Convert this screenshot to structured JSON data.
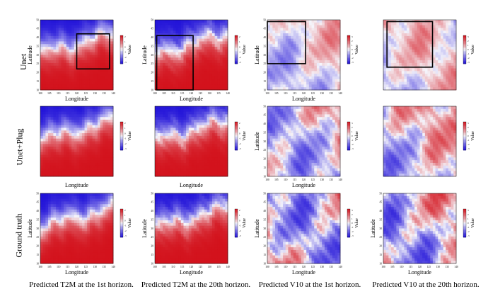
{
  "figure": {
    "rows": [
      "Unet",
      "Unet+Plug",
      "Ground truth"
    ],
    "captions": [
      "Predicted T2M at the 1st horizon.",
      "Predicted T2M at the 20th horizon.",
      "Predicted V10 at the 1st horizon.",
      "Predicted V10 at the 20th horizon."
    ]
  },
  "colors": {
    "low": "#1f10d8",
    "mid": "#f6f6fb",
    "high": "#d3121c",
    "box": "#000000"
  },
  "chart_data": [
    {
      "type": "heatmap",
      "row": "Unet",
      "variable": "T2M",
      "horizon": "1st",
      "xlabel": "Longitude",
      "ylabel": "Latitude",
      "colorbar_label": "Value",
      "x_ticks": [
        "100",
        "105",
        "110",
        "115",
        "120",
        "125",
        "130",
        "135",
        "140"
      ],
      "y_ticks": [
        "10",
        "15",
        "20",
        "25",
        "30",
        "35",
        "40",
        "45",
        "50"
      ],
      "colorbar_ticks": [
        "2",
        "1",
        "0",
        "-1",
        "-2",
        "-3"
      ],
      "xlim": [
        100,
        140
      ],
      "ylim": [
        10,
        50
      ],
      "clim": [
        -3,
        2.5
      ],
      "highlight_box": {
        "lon": [
          120,
          138
        ],
        "lat": [
          22,
          42
        ]
      }
    },
    {
      "type": "heatmap",
      "row": "Unet",
      "variable": "T2M",
      "horizon": "20th",
      "xlabel": "Longitude",
      "ylabel": "Latitude",
      "colorbar_label": "Value",
      "x_ticks": [
        "100",
        "105",
        "110",
        "115",
        "120",
        "125",
        "130",
        "135",
        "140"
      ],
      "y_ticks": [
        "10",
        "15",
        "20",
        "25",
        "30",
        "35",
        "40",
        "45",
        "50"
      ],
      "colorbar_ticks": [
        "2",
        "1",
        "0",
        "-1",
        "-2",
        "-3"
      ],
      "xlim": [
        100,
        140
      ],
      "ylim": [
        10,
        50
      ],
      "clim": [
        -3,
        2.5
      ],
      "highlight_box": {
        "lon": [
          101,
          121
        ],
        "lat": [
          10,
          41
        ]
      }
    },
    {
      "type": "heatmap",
      "row": "Unet",
      "variable": "V10",
      "horizon": "1st",
      "xlabel": "Longitude",
      "ylabel": "Latitude",
      "colorbar_label": "Value",
      "x_ticks": [
        "100",
        "105",
        "110",
        "115",
        "120",
        "125",
        "130",
        "135",
        "140"
      ],
      "y_ticks": [
        "10",
        "15",
        "20",
        "25",
        "30",
        "35",
        "40",
        "45",
        "50"
      ],
      "colorbar_ticks": [
        "3",
        "2",
        "1",
        "0",
        "-1",
        "-2",
        "-3"
      ],
      "xlim": [
        100,
        140
      ],
      "ylim": [
        10,
        50
      ],
      "clim": [
        -3.5,
        3.5
      ],
      "highlight_box": {
        "lon": [
          100,
          121
        ],
        "lat": [
          25,
          49
        ]
      }
    },
    {
      "type": "heatmap",
      "row": "Unet",
      "variable": "V10",
      "horizon": "20th",
      "xlabel": "",
      "ylabel": "",
      "colorbar_label": "Value",
      "x_ticks": [],
      "y_ticks": [],
      "colorbar_ticks": [
        "3",
        "2",
        "1",
        "0",
        "-1",
        "-2",
        "-3"
      ],
      "xlim": [
        100,
        140
      ],
      "ylim": [
        10,
        50
      ],
      "clim": [
        -3.5,
        3.5
      ],
      "highlight_box": {
        "lon": [
          102,
          127
        ],
        "lat": [
          23,
          49
        ]
      }
    },
    {
      "type": "heatmap",
      "row": "Unet+Plug",
      "variable": "T2M",
      "horizon": "1st",
      "xlabel": "Longitude",
      "ylabel": "",
      "colorbar_label": "Value",
      "x_ticks": [],
      "y_ticks": [],
      "colorbar_ticks": [
        "2",
        "1",
        "0",
        "-1",
        "-2",
        "-3"
      ],
      "xlim": [
        100,
        140
      ],
      "ylim": [
        10,
        50
      ],
      "clim": [
        -3,
        2.5
      ]
    },
    {
      "type": "heatmap",
      "row": "Unet+Plug",
      "variable": "T2M",
      "horizon": "20th",
      "xlabel": "Longitude",
      "ylabel": "",
      "colorbar_label": "Value",
      "x_ticks": [],
      "y_ticks": [],
      "colorbar_ticks": [
        "2",
        "1",
        "0",
        "-1",
        "-2",
        "-3"
      ],
      "xlim": [
        100,
        140
      ],
      "ylim": [
        10,
        50
      ],
      "clim": [
        -3,
        2.5
      ]
    },
    {
      "type": "heatmap",
      "row": "Unet+Plug",
      "variable": "V10",
      "horizon": "1st",
      "xlabel": "Longitude",
      "ylabel": "Latitude",
      "colorbar_label": "Value",
      "x_ticks": [
        "100",
        "105",
        "110",
        "115",
        "120",
        "125",
        "130",
        "135",
        "140"
      ],
      "y_ticks": [
        "10",
        "15",
        "20",
        "25",
        "30",
        "35",
        "40",
        "45",
        "50"
      ],
      "colorbar_ticks": [
        "3",
        "2",
        "1",
        "0",
        "-1",
        "-2",
        "-3"
      ],
      "xlim": [
        100,
        140
      ],
      "ylim": [
        10,
        50
      ],
      "clim": [
        -3.5,
        3.5
      ]
    },
    {
      "type": "heatmap",
      "row": "Unet+Plug",
      "variable": "V10",
      "horizon": "20th",
      "xlabel": "",
      "ylabel": "",
      "colorbar_label": "Value",
      "x_ticks": [],
      "y_ticks": [],
      "colorbar_ticks": [
        "3",
        "2",
        "1",
        "0",
        "-1",
        "-2",
        "-3"
      ],
      "xlim": [
        100,
        140
      ],
      "ylim": [
        10,
        50
      ],
      "clim": [
        -3.5,
        3.5
      ]
    },
    {
      "type": "heatmap",
      "row": "Ground truth",
      "variable": "T2M",
      "horizon": "1st",
      "xlabel": "Longitude",
      "ylabel": "Latitude",
      "colorbar_label": "Value",
      "x_ticks": [
        "100",
        "105",
        "110",
        "115",
        "120",
        "125",
        "130",
        "135",
        "140"
      ],
      "y_ticks": [
        "10",
        "15",
        "20",
        "25",
        "30",
        "35",
        "40",
        "45",
        "50"
      ],
      "colorbar_ticks": [
        "2",
        "1",
        "0",
        "-1",
        "-2",
        "-3"
      ],
      "xlim": [
        100,
        140
      ],
      "ylim": [
        10,
        50
      ],
      "clim": [
        -3,
        2.5
      ]
    },
    {
      "type": "heatmap",
      "row": "Ground truth",
      "variable": "T2M",
      "horizon": "20th",
      "xlabel": "Longitude",
      "ylabel": "Latitude",
      "colorbar_label": "Value",
      "x_ticks": [
        "100",
        "105",
        "110",
        "115",
        "120",
        "125",
        "130",
        "135",
        "140"
      ],
      "y_ticks": [
        "10",
        "15",
        "20",
        "25",
        "30",
        "35",
        "40",
        "45",
        "50"
      ],
      "colorbar_ticks": [
        "2",
        "1",
        "0",
        "-1",
        "-2",
        "-3"
      ],
      "xlim": [
        100,
        140
      ],
      "ylim": [
        10,
        50
      ],
      "clim": [
        -3,
        2.5
      ]
    },
    {
      "type": "heatmap",
      "row": "Ground truth",
      "variable": "V10",
      "horizon": "1st",
      "xlabel": "Longitude",
      "ylabel": "Latitude",
      "colorbar_label": "Value",
      "x_ticks": [
        "100",
        "105",
        "110",
        "115",
        "120",
        "125",
        "130",
        "135",
        "140"
      ],
      "y_ticks": [
        "10",
        "15",
        "20",
        "25",
        "30",
        "35",
        "40",
        "45",
        "50"
      ],
      "colorbar_ticks": [
        "3",
        "2",
        "1",
        "0",
        "-1",
        "-2",
        "-3"
      ],
      "xlim": [
        100,
        140
      ],
      "ylim": [
        10,
        50
      ],
      "clim": [
        -3.5,
        3.5
      ]
    },
    {
      "type": "heatmap",
      "row": "Ground truth",
      "variable": "V10",
      "horizon": "20th",
      "xlabel": "Longitude",
      "ylabel": "Latitude",
      "colorbar_label": "Value",
      "x_ticks": [
        "100",
        "105",
        "110",
        "115",
        "120",
        "125",
        "130",
        "135",
        "140"
      ],
      "y_ticks": [
        "10",
        "15",
        "20",
        "25",
        "30",
        "35",
        "40",
        "45",
        "50"
      ],
      "colorbar_ticks": [
        "3",
        "2",
        "1",
        "0",
        "-1",
        "-2",
        "-3"
      ],
      "xlim": [
        100,
        140
      ],
      "ylim": [
        10,
        50
      ],
      "clim": [
        -3.5,
        3.5
      ]
    }
  ]
}
